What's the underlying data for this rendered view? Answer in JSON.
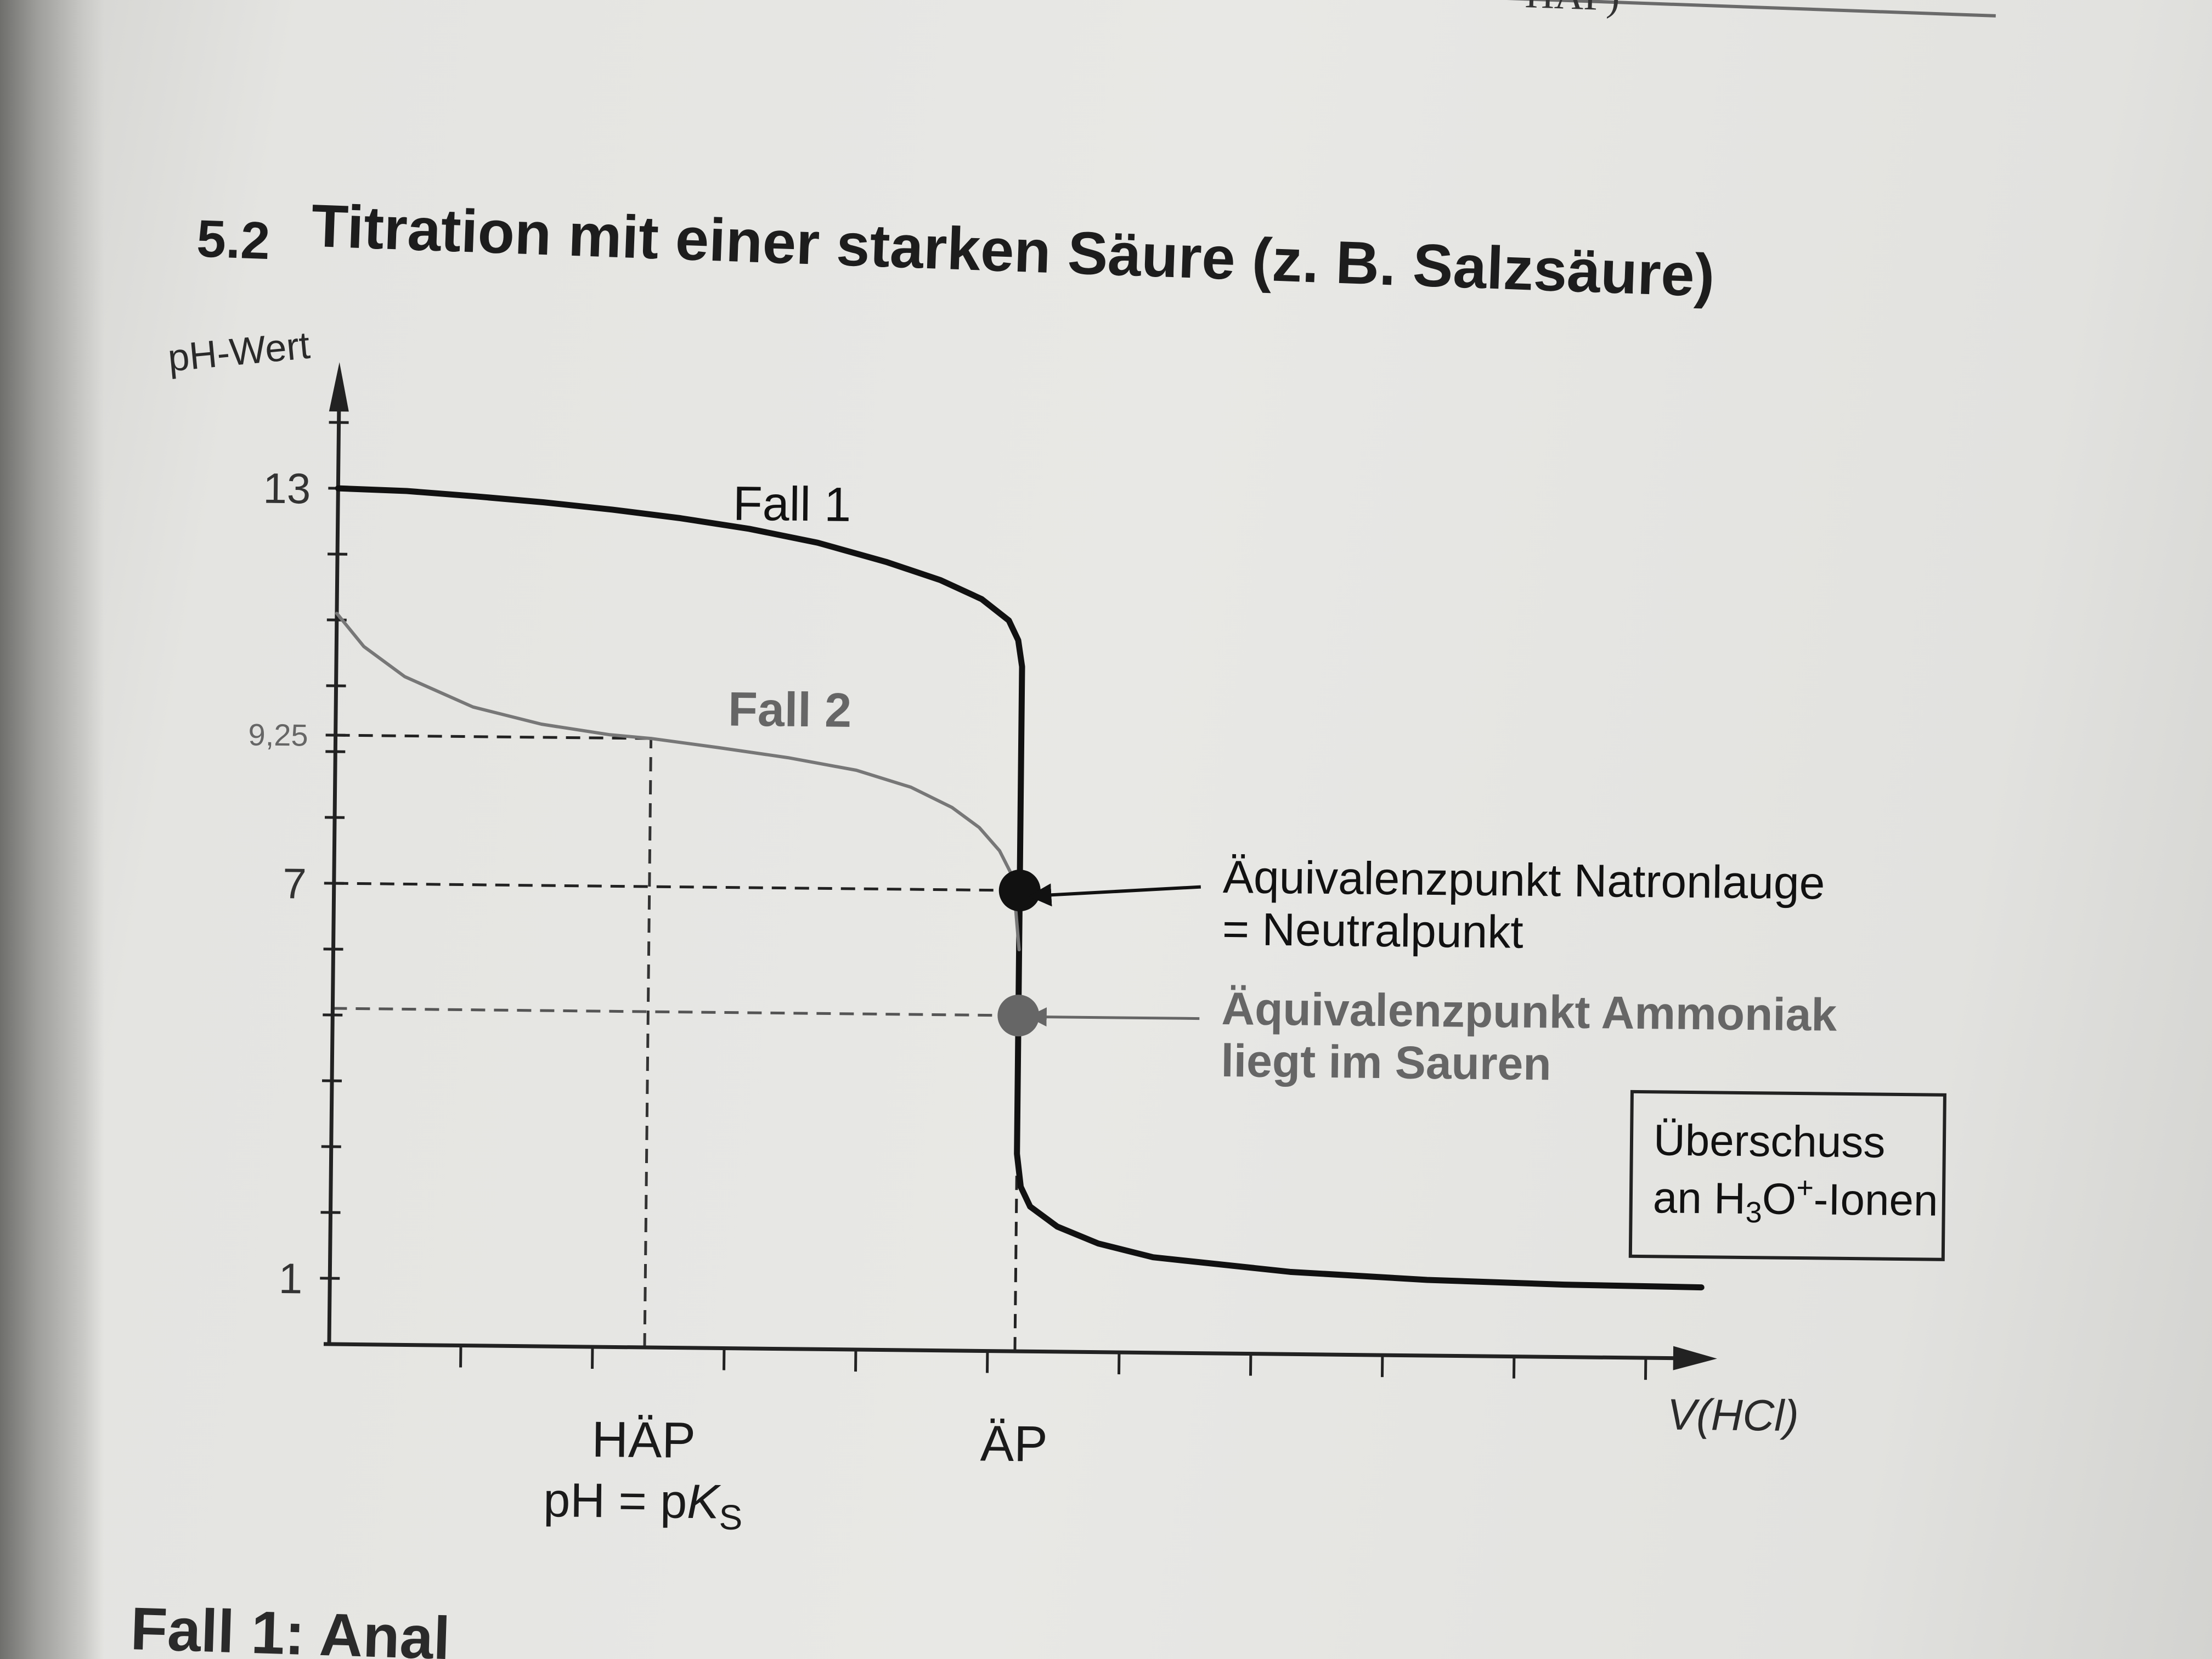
{
  "page": {
    "prev_heading": "HÄP)",
    "section_number": "5.2",
    "section_title": "Titration mit einer starken Säure (z. B. Salzsäure)",
    "bottom_text": "Fall 1: Anal"
  },
  "chart_data": {
    "type": "line",
    "title": "",
    "xlabel": "V(HCl)",
    "ylabel": "pH-Wert",
    "ylim": [
      0,
      14.5
    ],
    "xlim": [
      0,
      10.4
    ],
    "y_ticks_labeled": [
      {
        "value": 13,
        "label": "13"
      },
      {
        "value": 9.25,
        "label": "9,25"
      },
      {
        "value": 7,
        "label": "7"
      },
      {
        "value": 1,
        "label": "1"
      }
    ],
    "x_labels": [
      {
        "value": 2.3,
        "label": "HÄP",
        "sublabel_pre": "pH = p",
        "sublabel_k": "K",
        "sublabel_s": "S"
      },
      {
        "value": 5,
        "label": "ÄP"
      }
    ],
    "series": [
      {
        "name": "Fall 1",
        "color": "#111111",
        "x": [
          0,
          0.5,
          1,
          1.5,
          2,
          2.5,
          3,
          3.5,
          4,
          4.4,
          4.7,
          4.9,
          4.97,
          5.0,
          5.0,
          5.0,
          5.03,
          5.1,
          5.3,
          5.6,
          6,
          7,
          8,
          9,
          10
        ],
        "y": [
          13,
          12.97,
          12.9,
          12.82,
          12.72,
          12.6,
          12.45,
          12.25,
          11.97,
          11.7,
          11.42,
          11.1,
          10.8,
          10.4,
          7,
          3.0,
          2.5,
          2.2,
          1.9,
          1.65,
          1.45,
          1.25,
          1.15,
          1.1,
          1.08
        ]
      },
      {
        "name": "Fall 2",
        "color": "#777777",
        "x": [
          0,
          0.2,
          0.5,
          1,
          1.5,
          2,
          2.3,
          2.8,
          3.3,
          3.8,
          4.2,
          4.5,
          4.7,
          4.85,
          4.95,
          5.0
        ],
        "y": [
          11.1,
          10.6,
          10.15,
          9.7,
          9.45,
          9.3,
          9.25,
          9.12,
          8.98,
          8.8,
          8.55,
          8.25,
          7.95,
          7.6,
          7.2,
          6.1
        ]
      }
    ],
    "reference_lines": [
      {
        "y": 9.25,
        "x_to": 2.3
      },
      {
        "y": 7,
        "x_to": 5
      },
      {
        "y": 5.1,
        "x_to": 5
      }
    ],
    "points": [
      {
        "name": "Äquivalenzpunkt Natronlauge",
        "x": 5,
        "y": 7,
        "color": "#111111"
      },
      {
        "name": "Äquivalenzpunkt Ammoniak",
        "x": 5,
        "y": 5.1,
        "color": "#666666"
      }
    ],
    "annotations": {
      "fall1": "Fall 1",
      "fall2": "Fall 2",
      "naoh_line1": "Äquivalenzpunkt Natronlauge",
      "naoh_line2": "= Neutralpunkt",
      "nh3_line1": "Äquivalenzpunkt Ammoniak",
      "nh3_line2": "liegt im Sauren",
      "box_line1": "Überschuss",
      "box_line2_pre": "an H",
      "box_line2_sub": "3",
      "box_line2_o": "O",
      "box_line2_sup": "+",
      "box_line2_post": "-Ionen"
    }
  }
}
